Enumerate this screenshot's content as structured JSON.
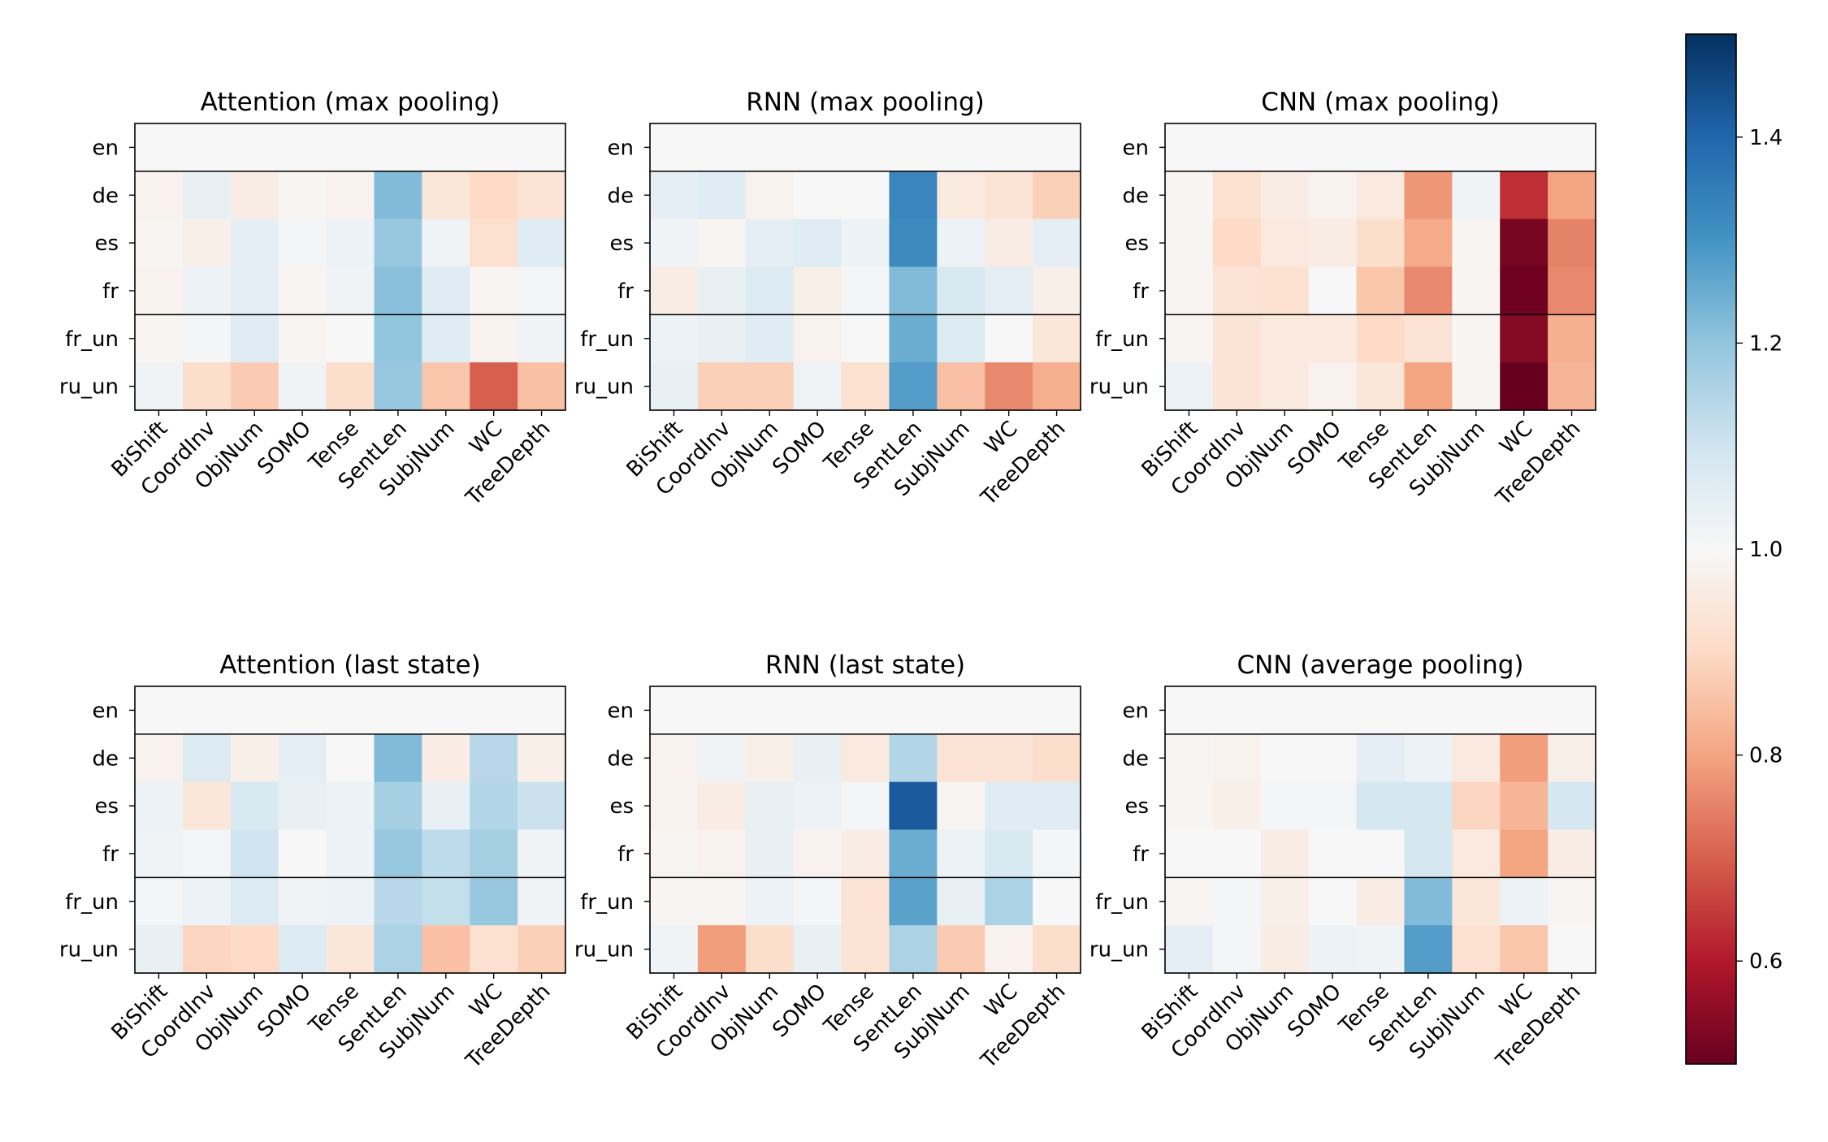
{
  "chart_data": {
    "type": "heatmap",
    "rows": [
      "en",
      "de",
      "es",
      "fr",
      "fr_un",
      "ru_un"
    ],
    "columns": [
      "BiShift",
      "CoordInv",
      "ObjNum",
      "SOMO",
      "Tense",
      "SentLen",
      "SubjNum",
      "WC",
      "TreeDepth"
    ],
    "colormap": "RdBu",
    "colormap_stops": [
      "#67001f",
      "#b2182b",
      "#d6604d",
      "#f4a582",
      "#fddbc7",
      "#f7f7f7",
      "#d1e5f0",
      "#92c5de",
      "#4393c3",
      "#2166ac",
      "#053061"
    ],
    "vmin": 0.5,
    "vmax": 1.5,
    "colorbar": {
      "ticks": [
        0.6,
        0.8,
        1.0,
        1.2,
        1.4
      ],
      "tick_labels": [
        "0.6",
        "0.8",
        "1.0",
        "1.2",
        "1.4"
      ]
    },
    "group_separators_after_rows": [
      "en",
      "fr"
    ],
    "panels": [
      {
        "title": "Attention (max pooling)",
        "values": [
          [
            1,
            1,
            1,
            1,
            1,
            1,
            1,
            1,
            1
          ],
          [
            0.98,
            1.04,
            0.96,
            0.99,
            0.98,
            1.22,
            0.94,
            0.9,
            0.93
          ],
          [
            0.99,
            0.97,
            1.05,
            1.01,
            1.03,
            1.19,
            1.02,
            0.92,
            1.06
          ],
          [
            0.98,
            1.03,
            1.05,
            0.99,
            1.02,
            1.21,
            1.06,
            0.99,
            1.01
          ],
          [
            0.99,
            1.01,
            1.06,
            0.99,
            1.0,
            1.2,
            1.06,
            0.98,
            1.02
          ],
          [
            1.02,
            0.91,
            0.87,
            1.02,
            0.91,
            1.19,
            0.86,
            0.7,
            0.85
          ]
        ]
      },
      {
        "title": "RNN (max pooling)",
        "values": [
          [
            1,
            1,
            1,
            1,
            1,
            1,
            1,
            1,
            1
          ],
          [
            1.05,
            1.06,
            0.98,
            1.0,
            1.0,
            1.33,
            0.95,
            0.93,
            0.88
          ],
          [
            1.02,
            0.99,
            1.05,
            1.06,
            1.03,
            1.32,
            1.03,
            0.96,
            1.05
          ],
          [
            0.96,
            1.04,
            1.07,
            0.97,
            1.01,
            1.22,
            1.08,
            1.05,
            0.97
          ],
          [
            1.03,
            1.04,
            1.06,
            0.98,
            1.0,
            1.25,
            1.07,
            1.0,
            0.94
          ],
          [
            1.04,
            0.88,
            0.88,
            1.02,
            0.92,
            1.28,
            0.85,
            0.76,
            0.82
          ]
        ]
      },
      {
        "title": "CNN (max pooling)",
        "values": [
          [
            1,
            1,
            1,
            1,
            1,
            1,
            1,
            1,
            1
          ],
          [
            0.99,
            0.92,
            0.96,
            0.98,
            0.95,
            0.78,
            1.02,
            0.63,
            0.8
          ],
          [
            0.99,
            0.9,
            0.95,
            0.96,
            0.91,
            0.81,
            0.99,
            0.52,
            0.75
          ],
          [
            0.99,
            0.93,
            0.92,
            1.0,
            0.86,
            0.76,
            0.99,
            0.51,
            0.76
          ],
          [
            0.99,
            0.93,
            0.95,
            0.95,
            0.9,
            0.93,
            0.99,
            0.54,
            0.82
          ],
          [
            1.03,
            0.93,
            0.95,
            0.98,
            0.94,
            0.8,
            0.99,
            0.5,
            0.83
          ]
        ]
      },
      {
        "title": "Attention (last state)",
        "values": [
          [
            1,
            1,
            1,
            1,
            1,
            1,
            1,
            1,
            1
          ],
          [
            0.98,
            1.07,
            0.97,
            1.05,
            1.0,
            1.22,
            0.96,
            1.14,
            0.97
          ],
          [
            1.03,
            0.94,
            1.08,
            1.04,
            1.03,
            1.17,
            1.04,
            1.15,
            1.11
          ],
          [
            1.02,
            1.01,
            1.1,
            1.0,
            1.03,
            1.19,
            1.13,
            1.17,
            1.02
          ],
          [
            1.01,
            1.03,
            1.07,
            1.02,
            1.03,
            1.14,
            1.12,
            1.19,
            1.02
          ],
          [
            1.04,
            0.89,
            0.9,
            1.07,
            0.94,
            1.16,
            0.85,
            0.92,
            0.88
          ]
        ]
      },
      {
        "title": "RNN (last state)",
        "values": [
          [
            1,
            1,
            1,
            1,
            1,
            1,
            1,
            1,
            1
          ],
          [
            0.98,
            1.02,
            0.97,
            1.04,
            0.95,
            1.15,
            0.93,
            0.93,
            0.91
          ],
          [
            0.98,
            0.96,
            1.04,
            1.03,
            1.01,
            1.42,
            0.99,
            1.06,
            1.06
          ],
          [
            0.99,
            0.98,
            1.04,
            0.98,
            0.96,
            1.25,
            1.03,
            1.08,
            1.01
          ],
          [
            0.99,
            0.99,
            1.03,
            1.01,
            0.93,
            1.27,
            1.04,
            1.16,
            1.0
          ],
          [
            1.02,
            0.79,
            0.91,
            1.04,
            0.93,
            1.16,
            0.87,
            0.98,
            0.91
          ]
        ]
      },
      {
        "title": "CNN (average pooling)",
        "values": [
          [
            1,
            1,
            1,
            1,
            1,
            1,
            1,
            1,
            1
          ],
          [
            0.99,
            0.98,
            1.0,
            1.0,
            1.05,
            1.03,
            0.95,
            0.79,
            0.97
          ],
          [
            0.99,
            0.97,
            1.01,
            1.01,
            1.09,
            1.09,
            0.89,
            0.83,
            1.09
          ],
          [
            1.0,
            1.0,
            0.96,
            1.0,
            1.0,
            1.09,
            0.95,
            0.8,
            0.96
          ],
          [
            0.99,
            1.01,
            0.97,
            1.0,
            0.96,
            1.22,
            0.94,
            1.03,
            0.99
          ],
          [
            1.05,
            1.01,
            0.96,
            1.03,
            1.02,
            1.28,
            0.92,
            0.86,
            1.0
          ]
        ]
      }
    ]
  }
}
